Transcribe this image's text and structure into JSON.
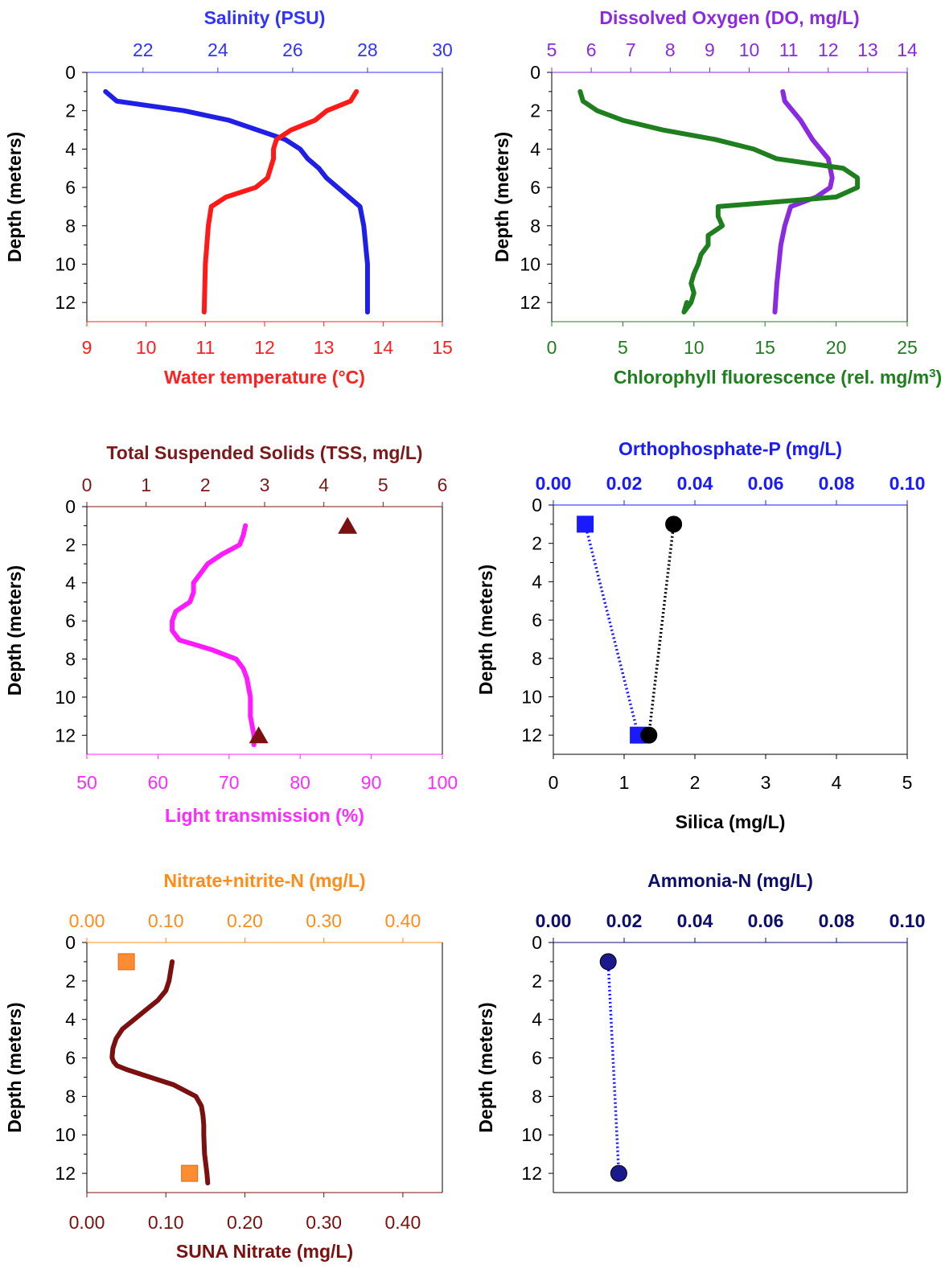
{
  "chart_data": [
    {
      "type": "line",
      "panel": "temperature-salinity",
      "ylabel": "Depth (meters)",
      "ylim": [
        13,
        0
      ],
      "yticks": [
        0,
        2,
        4,
        6,
        8,
        10,
        12
      ],
      "grid": false,
      "top_axis": {
        "label": "Salinity (PSU)",
        "min": 20.5,
        "max": 30,
        "ticks": [
          22,
          24,
          26,
          28,
          30
        ],
        "decimals": 0,
        "color": "#3333ff"
      },
      "bottom_axis": {
        "label": "Water temperature (°C)",
        "min": 9,
        "max": 15,
        "ticks": [
          9,
          10,
          11,
          12,
          13,
          14,
          15
        ],
        "decimals": 0,
        "color": "#ff2020"
      },
      "series": [
        {
          "name": "Salinity (PSU)",
          "axis": "top",
          "style": "line",
          "color": "#1f1fe6",
          "x": [
            21.0,
            21.3,
            23.1,
            24.3,
            25.8,
            26.2,
            26.4,
            26.7,
            26.9,
            27.2,
            27.8,
            27.9,
            28.0,
            28.0
          ],
          "y": [
            1.0,
            1.5,
            2.0,
            2.5,
            3.5,
            4.0,
            4.5,
            5.0,
            5.5,
            6.0,
            7.0,
            8.0,
            10.0,
            12.5
          ]
        },
        {
          "name": "Water temperature (°C)",
          "axis": "bottom",
          "style": "line",
          "color": "#ff1a1a",
          "x": [
            13.55,
            13.45,
            13.05,
            12.85,
            12.45,
            12.2,
            12.15,
            12.15,
            12.1,
            12.05,
            11.85,
            11.35,
            11.1,
            11.05,
            11.0,
            10.98
          ],
          "y": [
            1.0,
            1.5,
            2.0,
            2.5,
            3.0,
            3.5,
            4.0,
            4.5,
            5.0,
            5.5,
            6.0,
            6.5,
            7.0,
            8.0,
            10.0,
            12.5
          ]
        }
      ]
    },
    {
      "type": "line",
      "panel": "do-chlorophyll",
      "ylabel": "Depth (meters)",
      "ylim": [
        13,
        0
      ],
      "yticks": [
        0,
        2,
        4,
        6,
        8,
        10,
        12
      ],
      "grid": false,
      "top_axis": {
        "label": "Dissolved Oxygen (DO, mg/L)",
        "min": 5,
        "max": 14,
        "ticks": [
          5,
          6,
          7,
          8,
          9,
          10,
          11,
          12,
          13,
          14
        ],
        "decimals": 0,
        "color": "#8a2be2"
      },
      "bottom_axis": {
        "label": "Chlorophyll fluorescence (rel. mg/m",
        "label_sup": "3",
        "label_close": ")",
        "min": 0,
        "max": 25,
        "ticks": [
          0,
          5,
          10,
          15,
          20,
          25
        ],
        "decimals": 0,
        "color": "#1f7f1f"
      },
      "series": [
        {
          "name": "Dissolved Oxygen (DO, mg/L)",
          "axis": "top",
          "style": "line",
          "color": "#8a2be2",
          "x": [
            10.85,
            10.9,
            11.3,
            11.6,
            11.8,
            12.0,
            12.05,
            12.1,
            12.05,
            11.7,
            11.05,
            10.9,
            10.8,
            10.75,
            10.7,
            10.65
          ],
          "y": [
            1.0,
            1.5,
            2.5,
            3.5,
            4.0,
            4.5,
            5.0,
            5.5,
            6.0,
            6.5,
            7.0,
            8.0,
            9.0,
            10.0,
            11.0,
            12.5
          ]
        },
        {
          "name": "Chlorophyll fluorescence",
          "axis": "bottom",
          "style": "line",
          "color": "#1f7f1f",
          "x": [
            2.0,
            2.2,
            3.2,
            5.0,
            7.8,
            11.5,
            14.2,
            15.8,
            20.5,
            21.5,
            21.5,
            20.0,
            11.7,
            11.7,
            12.0,
            11.0,
            11.0,
            10.5,
            10.3,
            10.0,
            9.8,
            10.0,
            9.8,
            9.3,
            9.5
          ],
          "y": [
            1.0,
            1.5,
            2.0,
            2.5,
            3.0,
            3.5,
            4.0,
            4.5,
            5.0,
            5.5,
            6.0,
            6.5,
            7.0,
            7.5,
            8.0,
            8.5,
            9.0,
            9.5,
            10.0,
            10.5,
            11.0,
            11.5,
            12.0,
            12.5,
            12.0
          ]
        }
      ]
    },
    {
      "type": "line",
      "panel": "tss-transmission",
      "ylabel": "Depth (meters)",
      "ylim": [
        13,
        0
      ],
      "yticks": [
        0,
        2,
        4,
        6,
        8,
        10,
        12
      ],
      "grid": false,
      "top_axis": {
        "label": "Total Suspended Solids (TSS, mg/L)",
        "min": 0,
        "max": 6,
        "ticks": [
          0,
          1,
          2,
          3,
          4,
          5,
          6
        ],
        "decimals": 0,
        "color": "#7a1a1a"
      },
      "bottom_axis": {
        "label": "Light transmission (%)",
        "min": 50,
        "max": 100,
        "ticks": [
          50,
          60,
          70,
          80,
          90,
          100
        ],
        "decimals": 0,
        "color": "#ff2aff"
      },
      "series": [
        {
          "name": "Light transmission (%)",
          "axis": "bottom",
          "style": "line",
          "color": "#ff1aff",
          "x": [
            72.3,
            72.0,
            71.5,
            69.0,
            67.0,
            65.0,
            65.0,
            64.5,
            62.5,
            62.0,
            62.0,
            63.0,
            67.5,
            71.0,
            72.0,
            72.5,
            73.0,
            73.0,
            73.5,
            73.5
          ],
          "y": [
            1.0,
            1.5,
            2.0,
            2.5,
            3.0,
            4.0,
            4.5,
            5.0,
            5.5,
            6.0,
            6.5,
            7.0,
            7.5,
            8.0,
            8.5,
            9.0,
            10.0,
            11.0,
            12.0,
            12.5
          ]
        },
        {
          "name": "Total Suspended Solids (TSS, mg/L)",
          "axis": "top",
          "style": "marker",
          "marker": "triangle",
          "color": "#7a1010",
          "x": [
            4.4,
            2.9
          ],
          "y": [
            1.0,
            12.0
          ]
        }
      ]
    },
    {
      "type": "scatter",
      "panel": "orthophosphate-silica",
      "ylabel": "Depth (meters)",
      "ylim": [
        13,
        0
      ],
      "yticks": [
        0,
        2,
        4,
        6,
        8,
        10,
        12
      ],
      "grid": false,
      "top_axis": {
        "label": "Orthophosphate-P (mg/L)",
        "min": 0,
        "max": 0.1,
        "ticks": [
          0.0,
          0.02,
          0.04,
          0.06,
          0.08,
          0.1
        ],
        "decimals": 2,
        "color": "#1a1aff",
        "bold_ticks": true
      },
      "bottom_axis": {
        "label": "Silica (mg/L)",
        "min": 0,
        "max": 5,
        "ticks": [
          0,
          1,
          2,
          3,
          4,
          5
        ],
        "decimals": 0,
        "color": "#000000"
      },
      "series": [
        {
          "name": "Orthophosphate-P (mg/L)",
          "axis": "top",
          "style": "dotted-marker",
          "marker": "square",
          "color": "#1a1aff",
          "x": [
            0.009,
            0.024
          ],
          "y": [
            1.0,
            12.0
          ]
        },
        {
          "name": "Silica (mg/L)",
          "axis": "bottom",
          "style": "dotted-marker",
          "marker": "circle",
          "color": "#000000",
          "x": [
            1.7,
            1.35
          ],
          "y": [
            1.0,
            12.0
          ]
        }
      ]
    },
    {
      "type": "line",
      "panel": "nitrate",
      "ylabel": "Depth (meters)",
      "ylim": [
        13,
        0
      ],
      "yticks": [
        0,
        2,
        4,
        6,
        8,
        10,
        12
      ],
      "grid": false,
      "top_axis": {
        "label": "Nitrate+nitrite-N (mg/L)",
        "min": 0,
        "max": 0.45,
        "ticks": [
          0.0,
          0.1,
          0.2,
          0.3,
          0.4
        ],
        "decimals": 2,
        "color": "#ff8c1a"
      },
      "bottom_axis": {
        "label": "SUNA Nitrate (mg/L)",
        "min": 0,
        "max": 0.45,
        "ticks": [
          0.0,
          0.1,
          0.2,
          0.3,
          0.4
        ],
        "decimals": 2,
        "color": "#7a1010",
        "bold_label": true
      },
      "series": [
        {
          "name": "SUNA Nitrate (mg/L)",
          "axis": "bottom",
          "style": "line",
          "color": "#7a1010",
          "x": [
            0.108,
            0.106,
            0.104,
            0.1,
            0.09,
            0.075,
            0.06,
            0.045,
            0.037,
            0.033,
            0.032,
            0.032,
            0.034,
            0.038,
            0.05,
            0.08,
            0.11,
            0.138,
            0.145,
            0.147,
            0.148,
            0.148,
            0.149,
            0.152,
            0.153
          ],
          "y": [
            1.0,
            1.5,
            2.0,
            2.5,
            3.0,
            3.5,
            4.0,
            4.5,
            5.0,
            5.5,
            5.9,
            6.0,
            6.2,
            6.4,
            6.6,
            7.0,
            7.4,
            8.0,
            8.5,
            9.0,
            9.5,
            10.0,
            11.0,
            12.0,
            12.5
          ]
        },
        {
          "name": "Nitrate+nitrite-N (mg/L)",
          "axis": "top",
          "style": "marker",
          "marker": "square",
          "color": "#ff8c33",
          "x": [
            0.05,
            0.13
          ],
          "y": [
            1.0,
            12.0
          ]
        }
      ]
    },
    {
      "type": "scatter",
      "panel": "ammonia",
      "ylabel": "Depth (meters)",
      "ylim": [
        13,
        0
      ],
      "yticks": [
        0,
        2,
        4,
        6,
        8,
        10,
        12
      ],
      "grid": false,
      "top_axis": {
        "label": "Ammonia-N (mg/L)",
        "min": 0,
        "max": 0.1,
        "ticks": [
          0.0,
          0.02,
          0.04,
          0.06,
          0.08,
          0.1
        ],
        "decimals": 2,
        "color": "#0d0d6b",
        "bold_ticks": true
      },
      "series": [
        {
          "name": "Ammonia-N (mg/L)",
          "axis": "top",
          "style": "dotted-marker",
          "marker": "circle",
          "color": "#1a1a8c",
          "line_color": "#1a1aff",
          "x": [
            0.0155,
            0.0185
          ],
          "y": [
            1.0,
            12.0
          ]
        }
      ]
    }
  ]
}
